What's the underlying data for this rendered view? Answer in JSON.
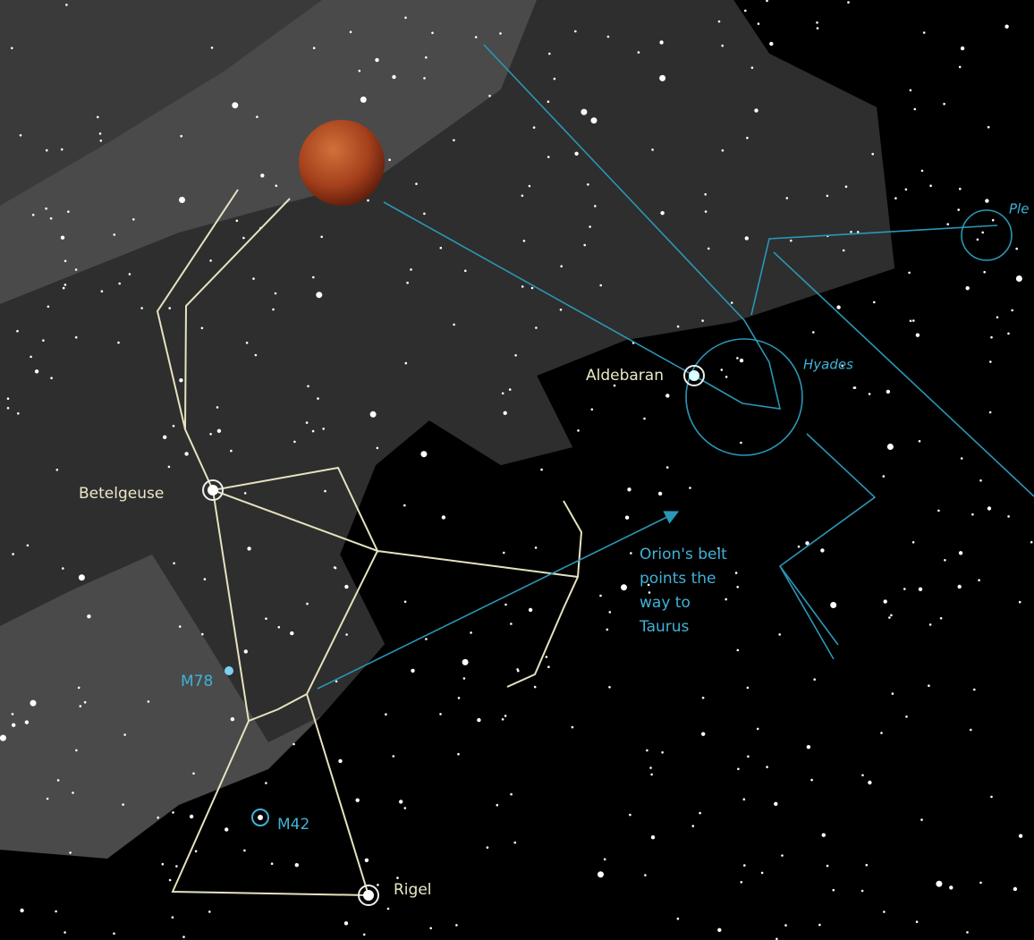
{
  "labels": {
    "betelgeuse": "Betelgeuse",
    "aldebaran": "Aldebaran",
    "hyades": "Hyades",
    "pleiades": "Ple",
    "m78": "M78",
    "m42": "M42",
    "rigel": "Rigel"
  },
  "annotation": {
    "lines": [
      "Orion's belt",
      "points the",
      "way to",
      "Taurus"
    ]
  }
}
